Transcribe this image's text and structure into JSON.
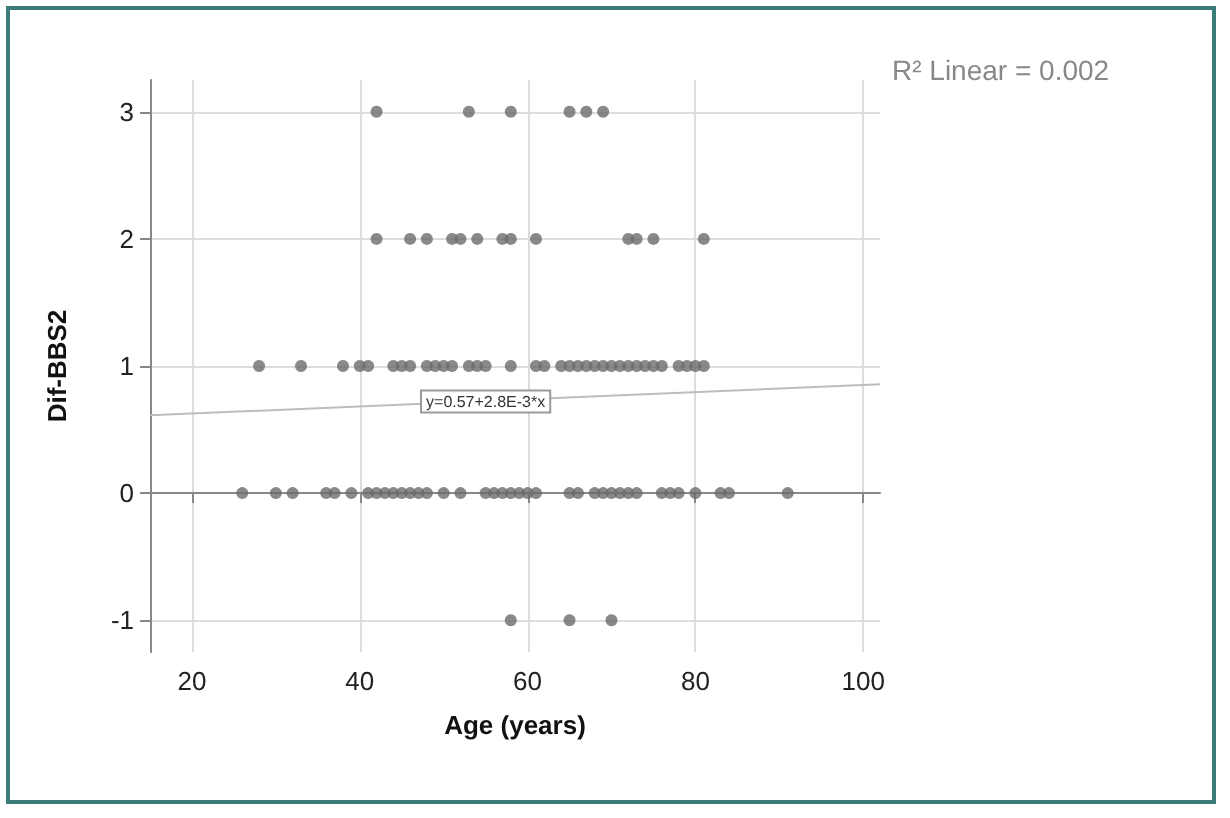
{
  "chart_data": {
    "type": "scatter",
    "xlabel": "Age (years)",
    "ylabel": "Dif-BBS2",
    "xlim": [
      15,
      102
    ],
    "xticks": [
      20,
      40,
      60,
      80,
      100
    ],
    "ylim": [
      -1.25,
      3.25
    ],
    "yticks": [
      -1,
      0,
      1,
      2,
      3
    ],
    "grid": true,
    "marker": "circle",
    "series": [
      {
        "color": "#6b6b6b",
        "x": [
          42,
          53,
          58,
          65,
          67,
          69,
          42,
          46,
          48,
          51,
          52,
          54,
          57,
          58,
          61,
          72,
          73,
          75,
          81,
          28,
          33,
          38,
          40,
          41,
          44,
          45,
          46,
          48,
          49,
          50,
          51,
          53,
          54,
          55,
          58,
          61,
          62,
          64,
          65,
          66,
          67,
          68,
          69,
          70,
          71,
          72,
          73,
          74,
          75,
          76,
          78,
          79,
          80,
          81,
          26,
          30,
          32,
          36,
          37,
          39,
          41,
          42,
          43,
          44,
          45,
          46,
          47,
          48,
          50,
          52,
          55,
          56,
          57,
          58,
          59,
          60,
          61,
          65,
          66,
          68,
          69,
          70,
          71,
          72,
          73,
          76,
          77,
          78,
          80,
          83,
          84,
          91,
          58,
          65,
          70
        ],
        "values": [
          3,
          3,
          3,
          3,
          3,
          3,
          2,
          2,
          2,
          2,
          2,
          2,
          2,
          2,
          2,
          2,
          2,
          2,
          2,
          1,
          1,
          1,
          1,
          1,
          1,
          1,
          1,
          1,
          1,
          1,
          1,
          1,
          1,
          1,
          1,
          1,
          1,
          1,
          1,
          1,
          1,
          1,
          1,
          1,
          1,
          1,
          1,
          1,
          1,
          1,
          1,
          1,
          1,
          1,
          0,
          0,
          0,
          0,
          0,
          0,
          0,
          0,
          0,
          0,
          0,
          0,
          0,
          0,
          0,
          0,
          0,
          0,
          0,
          0,
          0,
          0,
          0,
          0,
          0,
          0,
          0,
          0,
          0,
          0,
          0,
          0,
          0,
          0,
          0,
          0,
          0,
          0,
          -1,
          -1,
          -1
        ]
      },
      {
        "type": "line",
        "color": "#bdbdbd",
        "marker": "none",
        "x": [
          15,
          102
        ],
        "values": [
          0.612,
          0.856
        ]
      }
    ],
    "annotations": [
      {
        "text": "y=0.57+2.8E-3*x",
        "x": 55,
        "y": 0.72
      },
      "R² Linear = 0.002"
    ]
  }
}
